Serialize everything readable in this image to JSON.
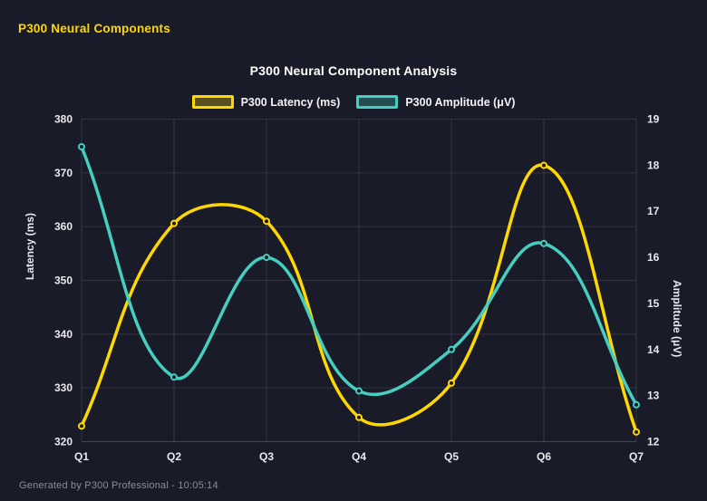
{
  "header": {
    "title": "P300 Neural Components"
  },
  "footer": {
    "text": "Generated by P300 Professional - 10:05:14"
  },
  "colors": {
    "background": "#1a1b28",
    "accent": "#ffd700",
    "latency_line": "#ffd700",
    "amplitude_line": "#45cfc0",
    "grid": "rgba(255,255,255,0.11)",
    "axis_border": "rgba(255,255,255,0.18)",
    "tick_text": "#e8e8ee",
    "footer_text": "#8a8d99"
  },
  "chart_data": {
    "type": "line",
    "title": "P300 Neural Component Analysis",
    "categories": [
      "Q1",
      "Q2",
      "Q3",
      "Q4",
      "Q5",
      "Q6",
      "Q7"
    ],
    "series": [
      {
        "name": "P300 Latency (ms)",
        "axis": "left",
        "color": "#ffd700",
        "values": [
          322.9,
          360.6,
          361.0,
          324.5,
          330.9,
          371.4,
          321.8
        ]
      },
      {
        "name": "P300 Amplitude (μV)",
        "axis": "right",
        "color": "#45cfc0",
        "values": [
          18.4,
          13.4,
          16.0,
          13.1,
          14.0,
          16.3,
          12.8
        ]
      }
    ],
    "left_axis": {
      "label": "Latency (ms)",
      "min": 320,
      "max": 380,
      "step": 10
    },
    "right_axis": {
      "label": "Amplitude (μV)",
      "min": 12,
      "max": 19,
      "step": 1
    },
    "grid": true,
    "legend_position": "top",
    "line_tension": 0.4,
    "marker_style": "hollow-circle"
  }
}
